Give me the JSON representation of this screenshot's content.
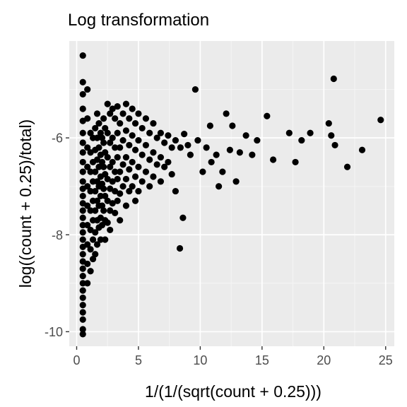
{
  "chart_data": {
    "type": "scatter",
    "title": "Log transformation",
    "xlabel": "1/(1/(sqrt(count + 0.25)))",
    "ylabel": "log((count + 0.25)/total)",
    "xlim": [
      -0.6,
      25.7
    ],
    "ylim": [
      -10.3,
      -4.0
    ],
    "x_ticks": [
      0,
      5,
      10,
      15,
      20,
      25
    ],
    "x_tick_labels": [
      "0",
      "5",
      "10",
      "15",
      "20",
      "25"
    ],
    "y_ticks": [
      -6,
      -8,
      -10
    ],
    "y_tick_labels": [
      "-6",
      "-8",
      "-10"
    ],
    "grid": true,
    "legend": "none",
    "colors": {
      "panel_background": "#ebebeb",
      "grid_major": "#ffffff",
      "grid_minor": "#f5f5f5",
      "point": "#000000",
      "tick_label": "#4d4d4d",
      "tick_mark": "#333333"
    },
    "points": [
      {
        "x": 0.5,
        "y": -4.3
      },
      {
        "x": 0.5,
        "y": -4.85
      },
      {
        "x": 0.5,
        "y": -5.1
      },
      {
        "x": 0.5,
        "y": -5.4
      },
      {
        "x": 0.5,
        "y": -5.65
      },
      {
        "x": 0.5,
        "y": -5.9
      },
      {
        "x": 0.5,
        "y": -6.1
      },
      {
        "x": 0.5,
        "y": -6.3
      },
      {
        "x": 0.5,
        "y": -6.5
      },
      {
        "x": 0.5,
        "y": -6.7
      },
      {
        "x": 0.5,
        "y": -6.9
      },
      {
        "x": 0.5,
        "y": -7.05
      },
      {
        "x": 0.5,
        "y": -7.2
      },
      {
        "x": 0.5,
        "y": -7.35
      },
      {
        "x": 0.5,
        "y": -7.5
      },
      {
        "x": 0.5,
        "y": -7.65
      },
      {
        "x": 0.5,
        "y": -7.8
      },
      {
        "x": 0.5,
        "y": -7.95
      },
      {
        "x": 0.5,
        "y": -8.1
      },
      {
        "x": 0.5,
        "y": -8.25
      },
      {
        "x": 0.5,
        "y": -8.4
      },
      {
        "x": 0.5,
        "y": -8.55
      },
      {
        "x": 0.5,
        "y": -8.7
      },
      {
        "x": 0.5,
        "y": -8.85
      },
      {
        "x": 0.5,
        "y": -9.0
      },
      {
        "x": 0.5,
        "y": -9.15
      },
      {
        "x": 0.5,
        "y": -9.3
      },
      {
        "x": 0.5,
        "y": -9.45
      },
      {
        "x": 0.5,
        "y": -9.6
      },
      {
        "x": 0.5,
        "y": -9.75
      },
      {
        "x": 0.5,
        "y": -9.95
      },
      {
        "x": 0.5,
        "y": -10.05
      },
      {
        "x": 0.87,
        "y": -5.0
      },
      {
        "x": 0.87,
        "y": -5.6
      },
      {
        "x": 0.87,
        "y": -6.2
      },
      {
        "x": 0.87,
        "y": -6.6
      },
      {
        "x": 0.87,
        "y": -7.0
      },
      {
        "x": 0.87,
        "y": -7.4
      },
      {
        "x": 0.87,
        "y": -7.8
      },
      {
        "x": 0.87,
        "y": -8.2
      },
      {
        "x": 0.87,
        "y": -8.6
      },
      {
        "x": 0.87,
        "y": -9.0
      },
      {
        "x": 1.12,
        "y": -5.9
      },
      {
        "x": 1.12,
        "y": -6.3
      },
      {
        "x": 1.12,
        "y": -6.7
      },
      {
        "x": 1.12,
        "y": -7.1
      },
      {
        "x": 1.12,
        "y": -7.5
      },
      {
        "x": 1.12,
        "y": -7.9
      },
      {
        "x": 1.12,
        "y": -8.3
      },
      {
        "x": 1.12,
        "y": -8.75
      },
      {
        "x": 1.32,
        "y": -6.0
      },
      {
        "x": 1.32,
        "y": -6.5
      },
      {
        "x": 1.32,
        "y": -6.9
      },
      {
        "x": 1.32,
        "y": -7.3
      },
      {
        "x": 1.32,
        "y": -7.7
      },
      {
        "x": 1.32,
        "y": -8.1
      },
      {
        "x": 1.32,
        "y": -8.5
      },
      {
        "x": 1.5,
        "y": -5.8
      },
      {
        "x": 1.5,
        "y": -6.25
      },
      {
        "x": 1.5,
        "y": -6.7
      },
      {
        "x": 1.5,
        "y": -7.1
      },
      {
        "x": 1.5,
        "y": -7.5
      },
      {
        "x": 1.5,
        "y": -7.95
      },
      {
        "x": 1.5,
        "y": -8.4
      },
      {
        "x": 1.66,
        "y": -5.5
      },
      {
        "x": 1.66,
        "y": -6.0
      },
      {
        "x": 1.66,
        "y": -6.45
      },
      {
        "x": 1.66,
        "y": -6.9
      },
      {
        "x": 1.66,
        "y": -7.3
      },
      {
        "x": 1.66,
        "y": -7.7
      },
      {
        "x": 1.66,
        "y": -8.2
      },
      {
        "x": 1.8,
        "y": -5.7
      },
      {
        "x": 1.8,
        "y": -6.2
      },
      {
        "x": 1.8,
        "y": -6.6
      },
      {
        "x": 1.8,
        "y": -7.0
      },
      {
        "x": 1.8,
        "y": -7.4
      },
      {
        "x": 1.8,
        "y": -7.85
      },
      {
        "x": 1.94,
        "y": -5.9
      },
      {
        "x": 1.94,
        "y": -6.35
      },
      {
        "x": 1.94,
        "y": -6.8
      },
      {
        "x": 1.94,
        "y": -7.2
      },
      {
        "x": 1.94,
        "y": -7.65
      },
      {
        "x": 1.94,
        "y": -8.1
      },
      {
        "x": 2.06,
        "y": -6.0
      },
      {
        "x": 2.06,
        "y": -6.5
      },
      {
        "x": 2.06,
        "y": -6.95
      },
      {
        "x": 2.06,
        "y": -7.4
      },
      {
        "x": 2.06,
        "y": -7.8
      },
      {
        "x": 2.18,
        "y": -5.6
      },
      {
        "x": 2.18,
        "y": -6.1
      },
      {
        "x": 2.18,
        "y": -6.6
      },
      {
        "x": 2.18,
        "y": -7.05
      },
      {
        "x": 2.18,
        "y": -7.5
      },
      {
        "x": 2.3,
        "y": -5.8
      },
      {
        "x": 2.3,
        "y": -6.3
      },
      {
        "x": 2.3,
        "y": -6.75
      },
      {
        "x": 2.3,
        "y": -7.2
      },
      {
        "x": 2.3,
        "y": -7.7
      },
      {
        "x": 2.3,
        "y": -8.1
      },
      {
        "x": 2.5,
        "y": -5.3
      },
      {
        "x": 2.5,
        "y": -5.9
      },
      {
        "x": 2.5,
        "y": -6.4
      },
      {
        "x": 2.5,
        "y": -6.85
      },
      {
        "x": 2.5,
        "y": -7.3
      },
      {
        "x": 2.5,
        "y": -7.75
      },
      {
        "x": 2.7,
        "y": -5.5
      },
      {
        "x": 2.7,
        "y": -6.1
      },
      {
        "x": 2.7,
        "y": -6.6
      },
      {
        "x": 2.7,
        "y": -7.05
      },
      {
        "x": 2.7,
        "y": -7.5
      },
      {
        "x": 2.7,
        "y": -7.9
      },
      {
        "x": 2.9,
        "y": -5.4
      },
      {
        "x": 2.9,
        "y": -6.0
      },
      {
        "x": 2.9,
        "y": -6.5
      },
      {
        "x": 2.9,
        "y": -6.9
      },
      {
        "x": 2.9,
        "y": -7.35
      },
      {
        "x": 3.1,
        "y": -5.6
      },
      {
        "x": 3.1,
        "y": -6.2
      },
      {
        "x": 3.1,
        "y": -6.7
      },
      {
        "x": 3.1,
        "y": -7.1
      },
      {
        "x": 3.1,
        "y": -7.55
      },
      {
        "x": 3.3,
        "y": -5.35
      },
      {
        "x": 3.3,
        "y": -5.9
      },
      {
        "x": 3.3,
        "y": -6.4
      },
      {
        "x": 3.3,
        "y": -6.85
      },
      {
        "x": 3.3,
        "y": -7.3
      },
      {
        "x": 3.5,
        "y": -5.7
      },
      {
        "x": 3.5,
        "y": -6.2
      },
      {
        "x": 3.5,
        "y": -6.7
      },
      {
        "x": 3.5,
        "y": -7.15
      },
      {
        "x": 3.5,
        "y": -7.7
      },
      {
        "x": 3.75,
        "y": -5.5
      },
      {
        "x": 3.75,
        "y": -6.05
      },
      {
        "x": 3.75,
        "y": -6.55
      },
      {
        "x": 3.75,
        "y": -7.0
      },
      {
        "x": 4.0,
        "y": -5.3
      },
      {
        "x": 4.0,
        "y": -5.85
      },
      {
        "x": 4.0,
        "y": -6.4
      },
      {
        "x": 4.0,
        "y": -6.85
      },
      {
        "x": 4.0,
        "y": -7.4
      },
      {
        "x": 4.25,
        "y": -5.6
      },
      {
        "x": 4.25,
        "y": -6.15
      },
      {
        "x": 4.25,
        "y": -6.65
      },
      {
        "x": 4.25,
        "y": -7.1
      },
      {
        "x": 4.5,
        "y": -5.4
      },
      {
        "x": 4.5,
        "y": -5.95
      },
      {
        "x": 4.5,
        "y": -6.5
      },
      {
        "x": 4.5,
        "y": -7.0
      },
      {
        "x": 4.75,
        "y": -5.7
      },
      {
        "x": 4.75,
        "y": -6.25
      },
      {
        "x": 4.75,
        "y": -6.8
      },
      {
        "x": 4.75,
        "y": -7.3
      },
      {
        "x": 5.0,
        "y": -5.5
      },
      {
        "x": 5.0,
        "y": -6.05
      },
      {
        "x": 5.0,
        "y": -6.6
      },
      {
        "x": 5.0,
        "y": -7.1
      },
      {
        "x": 5.3,
        "y": -5.8
      },
      {
        "x": 5.3,
        "y": -6.35
      },
      {
        "x": 5.3,
        "y": -6.9
      },
      {
        "x": 5.6,
        "y": -5.6
      },
      {
        "x": 5.6,
        "y": -6.15
      },
      {
        "x": 5.6,
        "y": -6.7
      },
      {
        "x": 5.9,
        "y": -5.9
      },
      {
        "x": 5.9,
        "y": -6.45
      },
      {
        "x": 5.9,
        "y": -7.0
      },
      {
        "x": 6.2,
        "y": -5.7
      },
      {
        "x": 6.2,
        "y": -6.3
      },
      {
        "x": 6.2,
        "y": -6.8
      },
      {
        "x": 6.5,
        "y": -6.0
      },
      {
        "x": 6.5,
        "y": -6.55
      },
      {
        "x": 6.8,
        "y": -5.9
      },
      {
        "x": 6.8,
        "y": -6.4
      },
      {
        "x": 6.8,
        "y": -6.9
      },
      {
        "x": 7.1,
        "y": -6.1
      },
      {
        "x": 7.1,
        "y": -6.6
      },
      {
        "x": 7.4,
        "y": -5.95
      },
      {
        "x": 7.4,
        "y": -6.5
      },
      {
        "x": 7.7,
        "y": -6.2
      },
      {
        "x": 7.7,
        "y": -6.75
      },
      {
        "x": 8.0,
        "y": -6.05
      },
      {
        "x": 8.0,
        "y": -7.1
      },
      {
        "x": 8.4,
        "y": -6.2
      },
      {
        "x": 8.35,
        "y": -8.28
      },
      {
        "x": 8.7,
        "y": -5.92
      },
      {
        "x": 8.6,
        "y": -7.65
      },
      {
        "x": 9.0,
        "y": -6.15
      },
      {
        "x": 9.2,
        "y": -6.35
      },
      {
        "x": 9.6,
        "y": -5.0
      },
      {
        "x": 9.8,
        "y": -6.05
      },
      {
        "x": 10.2,
        "y": -6.7
      },
      {
        "x": 10.5,
        "y": -6.2
      },
      {
        "x": 10.8,
        "y": -5.75
      },
      {
        "x": 10.9,
        "y": -6.5
      },
      {
        "x": 11.3,
        "y": -6.35
      },
      {
        "x": 11.5,
        "y": -7.0
      },
      {
        "x": 11.8,
        "y": -6.7
      },
      {
        "x": 12.1,
        "y": -5.5
      },
      {
        "x": 12.4,
        "y": -6.25
      },
      {
        "x": 12.6,
        "y": -5.75
      },
      {
        "x": 12.9,
        "y": -6.9
      },
      {
        "x": 13.2,
        "y": -6.3
      },
      {
        "x": 13.7,
        "y": -5.95
      },
      {
        "x": 14.2,
        "y": -6.35
      },
      {
        "x": 14.6,
        "y": -6.05
      },
      {
        "x": 15.4,
        "y": -5.55
      },
      {
        "x": 15.9,
        "y": -6.45
      },
      {
        "x": 17.2,
        "y": -5.9
      },
      {
        "x": 17.7,
        "y": -6.5
      },
      {
        "x": 18.2,
        "y": -6.05
      },
      {
        "x": 18.9,
        "y": -5.9
      },
      {
        "x": 20.4,
        "y": -5.7
      },
      {
        "x": 20.6,
        "y": -5.95
      },
      {
        "x": 20.8,
        "y": -4.78
      },
      {
        "x": 20.9,
        "y": -6.15
      },
      {
        "x": 21.9,
        "y": -6.6
      },
      {
        "x": 23.1,
        "y": -6.25
      },
      {
        "x": 24.6,
        "y": -5.63
      }
    ]
  }
}
